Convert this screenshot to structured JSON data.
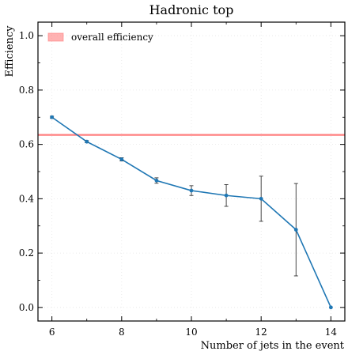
{
  "chart_data": {
    "type": "line",
    "title": "Hadronic top",
    "xlabel": "Number of jets in the event",
    "ylabel": "Efficiency",
    "xlim": [
      5.6,
      14.4
    ],
    "ylim": [
      -0.05,
      1.05
    ],
    "xticks": [
      6,
      8,
      10,
      12,
      14
    ],
    "yticks": [
      0.0,
      0.2,
      0.4,
      0.6,
      0.8,
      1.0
    ],
    "xtick_labels": [
      "6",
      "8",
      "10",
      "12",
      "14"
    ],
    "ytick_labels": [
      "0.0",
      "0.2",
      "0.4",
      "0.6",
      "0.8",
      "1.0"
    ],
    "grid": true,
    "legend": {
      "placement": "top-left",
      "entries": [
        "overall efficiency"
      ]
    },
    "series": [
      {
        "x": [
          6,
          7,
          8,
          9,
          10,
          11,
          12,
          13,
          14
        ],
        "values": [
          0.7,
          0.61,
          0.545,
          0.467,
          0.43,
          0.412,
          0.4,
          0.286,
          0.0
        ],
        "errors": [
          0.004,
          0.004,
          0.006,
          0.01,
          0.018,
          0.04,
          0.083,
          0.17,
          0.0
        ],
        "color": "#1f77b4"
      }
    ],
    "hline": {
      "name": "overall efficiency",
      "value": 0.635,
      "color": "#ff7f7f"
    }
  }
}
